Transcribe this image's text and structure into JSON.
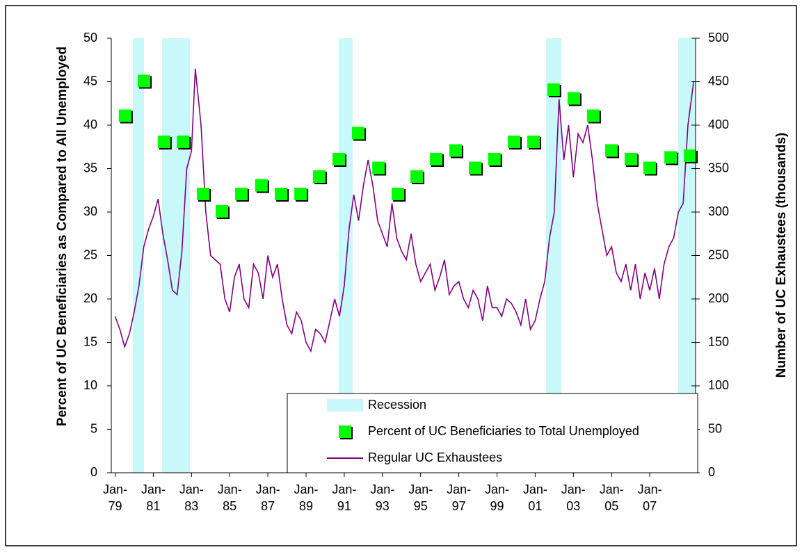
{
  "chart_data": {
    "type": "combo",
    "y_label": "Percent of UC Beneficiaries as Compared to All Unemployed",
    "y2_label": "Number of UC Exhaustees (thousands)",
    "xlim": [
      1978.8,
      2009.4
    ],
    "xticks": [
      {
        "value": 1979,
        "label": "Jan-79"
      },
      {
        "value": 1981,
        "label": "Jan-81"
      },
      {
        "value": 1983,
        "label": "Jan-83"
      },
      {
        "value": 1985,
        "label": "Jan-85"
      },
      {
        "value": 1987,
        "label": "Jan-87"
      },
      {
        "value": 1989,
        "label": "Jan-89"
      },
      {
        "value": 1991,
        "label": "Jan-91"
      },
      {
        "value": 1993,
        "label": "Jan-93"
      },
      {
        "value": 1995,
        "label": "Jan-95"
      },
      {
        "value": 1997,
        "label": "Jan-97"
      },
      {
        "value": 1999,
        "label": "Jan-99"
      },
      {
        "value": 2001,
        "label": "Jan-01"
      },
      {
        "value": 2003,
        "label": "Jan-03"
      },
      {
        "value": 2005,
        "label": "Jan-05"
      },
      {
        "value": 2007,
        "label": "Jan-07"
      }
    ],
    "ylim": [
      0,
      50
    ],
    "yticks": [
      0,
      5,
      10,
      15,
      20,
      25,
      30,
      35,
      40,
      45,
      50
    ],
    "y2lim": [
      0,
      500
    ],
    "y2ticks": [
      0,
      50,
      100,
      150,
      200,
      250,
      300,
      350,
      400,
      450,
      500
    ],
    "legend": "bottom-right",
    "series": [
      {
        "name": "Recession",
        "type": "band",
        "color": "#c8f8fa",
        "x": [
          [
            1979.93,
            1980.51
          ],
          [
            1981.46,
            1982.92
          ],
          [
            1990.71,
            1991.44
          ],
          [
            2001.57,
            2002.37
          ],
          [
            2008.49,
            2009.4
          ]
        ]
      },
      {
        "name": "Percent of UC Beneficiaries to Total Unemployed",
        "type": "scatter",
        "color": "#00ff00",
        "x": [
          1979.56,
          1980.55,
          1981.6,
          1982.6,
          1983.65,
          1984.63,
          1985.65,
          1986.7,
          1987.73,
          1988.75,
          1989.73,
          1990.75,
          1991.77,
          1992.83,
          1993.85,
          1994.83,
          1995.85,
          1996.87,
          1997.89,
          1998.9,
          1999.93,
          2000.95,
          2002.0,
          2003.06,
          2004.08,
          2005.03,
          2006.05,
          2007.03,
          2008.13,
          2009.15
        ],
        "values": [
          41,
          45,
          38,
          38,
          32,
          30,
          32,
          33,
          32,
          32,
          34,
          36,
          39,
          35,
          32,
          34,
          36,
          37,
          35,
          36,
          38,
          38,
          44,
          43,
          41,
          37,
          36,
          35,
          36.2,
          36.4
        ]
      },
      {
        "name": "Regular UC Exhaustees",
        "type": "line",
        "axis": "y2",
        "color": "#800080",
        "x": [
          1979.0,
          1979.25,
          1979.5,
          1979.75,
          1980.0,
          1980.25,
          1980.5,
          1980.75,
          1981.0,
          1981.25,
          1981.5,
          1981.75,
          1982.0,
          1982.25,
          1982.5,
          1982.75,
          1983.0,
          1983.2,
          1983.5,
          1983.75,
          1984.0,
          1984.25,
          1984.5,
          1984.75,
          1985.0,
          1985.25,
          1985.5,
          1985.75,
          1986.0,
          1986.25,
          1986.5,
          1986.75,
          1987.0,
          1987.25,
          1987.5,
          1987.75,
          1988.0,
          1988.25,
          1988.5,
          1988.75,
          1989.0,
          1989.25,
          1989.5,
          1989.75,
          1990.0,
          1990.25,
          1990.5,
          1990.75,
          1991.0,
          1991.25,
          1991.5,
          1991.75,
          1992.0,
          1992.25,
          1992.5,
          1992.75,
          1993.0,
          1993.25,
          1993.5,
          1993.75,
          1994.0,
          1994.25,
          1994.5,
          1994.75,
          1995.0,
          1995.25,
          1995.5,
          1995.75,
          1996.0,
          1996.25,
          1996.5,
          1996.75,
          1997.0,
          1997.25,
          1997.5,
          1997.75,
          1998.0,
          1998.25,
          1998.5,
          1998.75,
          1999.0,
          1999.25,
          1999.5,
          1999.75,
          2000.0,
          2000.25,
          2000.5,
          2000.75,
          2001.0,
          2001.25,
          2001.5,
          2001.75,
          2002.0,
          2002.25,
          2002.5,
          2002.75,
          2003.0,
          2003.25,
          2003.5,
          2003.75,
          2004.0,
          2004.25,
          2004.5,
          2004.75,
          2005.0,
          2005.25,
          2005.5,
          2005.75,
          2006.0,
          2006.25,
          2006.5,
          2006.75,
          2007.0,
          2007.25,
          2007.5,
          2007.75,
          2008.0,
          2008.25,
          2008.5,
          2008.75,
          2009.0,
          2009.3
        ],
        "values": [
          180,
          165,
          145,
          160,
          185,
          215,
          260,
          280,
          295,
          315,
          275,
          245,
          210,
          205,
          255,
          350,
          370,
          465,
          400,
          300,
          250,
          245,
          240,
          200,
          185,
          225,
          240,
          200,
          190,
          240,
          230,
          200,
          250,
          225,
          240,
          200,
          170,
          160,
          185,
          175,
          150,
          140,
          165,
          160,
          150,
          175,
          200,
          180,
          215,
          280,
          320,
          290,
          330,
          360,
          330,
          290,
          275,
          260,
          310,
          270,
          255,
          245,
          275,
          240,
          220,
          230,
          240,
          210,
          225,
          245,
          205,
          215,
          220,
          200,
          190,
          210,
          200,
          175,
          215,
          190,
          190,
          180,
          200,
          195,
          185,
          170,
          200,
          165,
          175,
          200,
          220,
          270,
          300,
          430,
          360,
          400,
          340,
          390,
          380,
          400,
          360,
          310,
          280,
          250,
          260,
          230,
          220,
          240,
          210,
          240,
          200,
          230,
          210,
          235,
          200,
          240,
          260,
          270,
          300,
          310,
          400,
          450
        ]
      }
    ]
  }
}
